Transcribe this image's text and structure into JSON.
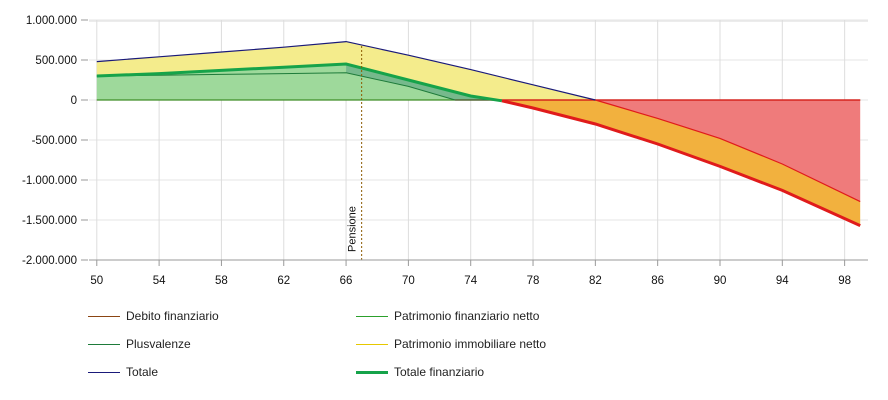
{
  "chart_data": {
    "type": "area",
    "x_ticks": [
      50,
      54,
      58,
      62,
      66,
      70,
      74,
      78,
      82,
      86,
      90,
      94,
      98
    ],
    "y_ticks": [
      1000000,
      500000,
      0,
      -500000,
      -1000000,
      -1500000,
      -2000000
    ],
    "y_tick_labels": [
      "1.000.000",
      "500.000",
      "0",
      "-500.000",
      "-1.000.000",
      "-1.500.000",
      "-2.000.000"
    ],
    "xlim": [
      49.5,
      99.5
    ],
    "ylim": [
      -2000000,
      1000000
    ],
    "annotation": {
      "label": "Pensione",
      "x": 67
    },
    "grid": true,
    "legend_position": "bottom",
    "series": [
      {
        "key": "debito",
        "name": "Debito finanziario",
        "color": "#8b4513",
        "fill": "none",
        "x": [
          50,
          66,
          99
        ],
        "y": [
          0,
          0,
          0
        ]
      },
      {
        "key": "patrimonio_finanziario",
        "name": "Patrimonio finanziario netto",
        "color": "#2ca02c",
        "fill": "#9ed99b",
        "x": [
          50,
          66,
          73,
          82,
          86,
          90,
          94,
          99
        ],
        "y": [
          0,
          0,
          0,
          0,
          0,
          0,
          0,
          0
        ]
      },
      {
        "key": "plusvalenze",
        "name": "Plusvalenze",
        "color": "#1e7b3a",
        "fill": "#8ec89a",
        "x": [
          50,
          54,
          58,
          62,
          66,
          70,
          73,
          76
        ],
        "y": [
          300000,
          310000,
          320000,
          330000,
          340000,
          170000,
          0,
          0
        ]
      },
      {
        "key": "immobiliare",
        "name": "Patrimonio immobiliare netto",
        "color": "#e6c800",
        "fill": "#f4ec8c",
        "x": [
          50,
          66
        ],
        "y": [
          480000,
          730000
        ]
      },
      {
        "key": "totale",
        "name": "Totale",
        "color": "#1a1a7a",
        "fill": "none",
        "x": [
          50,
          54,
          58,
          62,
          66,
          70,
          74,
          78,
          82,
          86,
          90,
          94,
          99
        ],
        "y": [
          480000,
          540000,
          600000,
          660000,
          730000,
          560000,
          380000,
          190000,
          0,
          -230000,
          -480000,
          -800000,
          -1270000
        ]
      },
      {
        "key": "totale_finanziario",
        "name": "Totale finanziario",
        "color": "#16a34a",
        "fill": "none",
        "x": [
          50,
          54,
          58,
          62,
          66,
          70,
          74,
          76
        ],
        "y": [
          300000,
          330000,
          370000,
          410000,
          450000,
          250000,
          50000,
          -10000
        ]
      },
      {
        "key": "totale_finanziario_neg",
        "name": "",
        "color": "#e01b1b",
        "fill": "none",
        "x": [
          76,
          78,
          82,
          86,
          90,
          94,
          99
        ],
        "y": [
          -10000,
          -100000,
          -300000,
          -550000,
          -830000,
          -1130000,
          -1570000
        ]
      },
      {
        "key": "negative_zone",
        "name": "",
        "color": "#e01b1b",
        "fill": "#ef7b7b",
        "x": [
          73,
          82,
          86,
          90,
          94,
          99
        ],
        "y": [
          0,
          0,
          0,
          0,
          0,
          0
        ]
      }
    ]
  },
  "legend": {
    "items": [
      {
        "label": "Debito finanziario",
        "color": "#8b4513",
        "thick": false
      },
      {
        "label": "Patrimonio finanziario netto",
        "color": "#2ca02c",
        "thick": false
      },
      {
        "label": "Plusvalenze",
        "color": "#1e7b3a",
        "thick": false
      },
      {
        "label": "Patrimonio immobiliare netto",
        "color": "#e6c800",
        "thick": false
      },
      {
        "label": "Totale",
        "color": "#1a1a7a",
        "thick": false
      },
      {
        "label": "Totale finanziario",
        "color": "#16a34a",
        "thick": true
      }
    ]
  }
}
